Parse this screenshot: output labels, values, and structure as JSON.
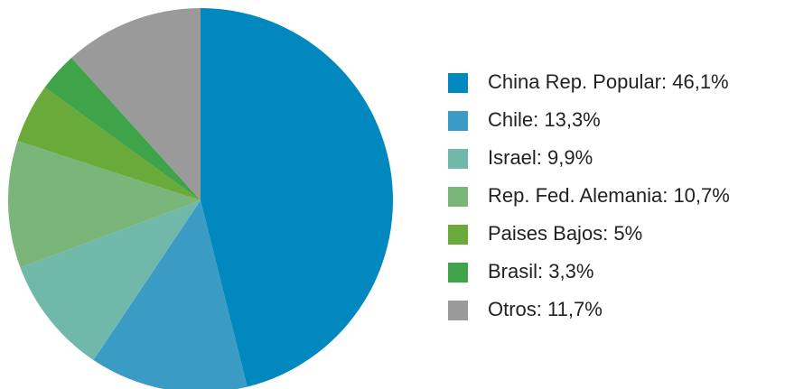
{
  "chart_data": {
    "type": "pie",
    "categories": [
      "China Rep. Popular: 46,1%",
      "Chile: 13,3%",
      "Israel: 9,9%",
      "Rep. Fed. Alemania: 10,7%",
      "Paises Bajos: 5%",
      "Brasil: 3,3%",
      "Otros: 11,7%"
    ],
    "values": [
      46.1,
      13.3,
      9.9,
      10.7,
      5,
      3.3,
      11.7
    ],
    "colors": [
      "#0088bf",
      "#3a9cc4",
      "#6fb8aa",
      "#7ab57a",
      "#6aaa3a",
      "#3fa34a",
      "#9a9a9a"
    ],
    "legend": "right"
  }
}
